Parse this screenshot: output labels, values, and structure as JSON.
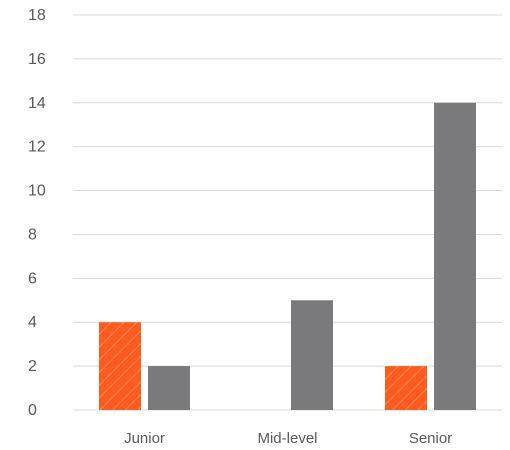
{
  "chart_data": {
    "type": "bar",
    "title": "",
    "xlabel": "",
    "ylabel": "",
    "categories": [
      "Junior",
      "Mid-level",
      "Senior"
    ],
    "series": [
      {
        "values": [
          4,
          0,
          2
        ],
        "color": "#ff5b1f",
        "pattern": "diagonal-hatch"
      },
      {
        "values": [
          2,
          5,
          14
        ],
        "color": "#7a7a7c"
      }
    ],
    "ylim": [
      0,
      18
    ],
    "yticks": [
      "0",
      "2",
      "4",
      "6",
      "8",
      "10",
      "12",
      "14",
      "16",
      "18"
    ],
    "grid": true,
    "legend": "none"
  }
}
